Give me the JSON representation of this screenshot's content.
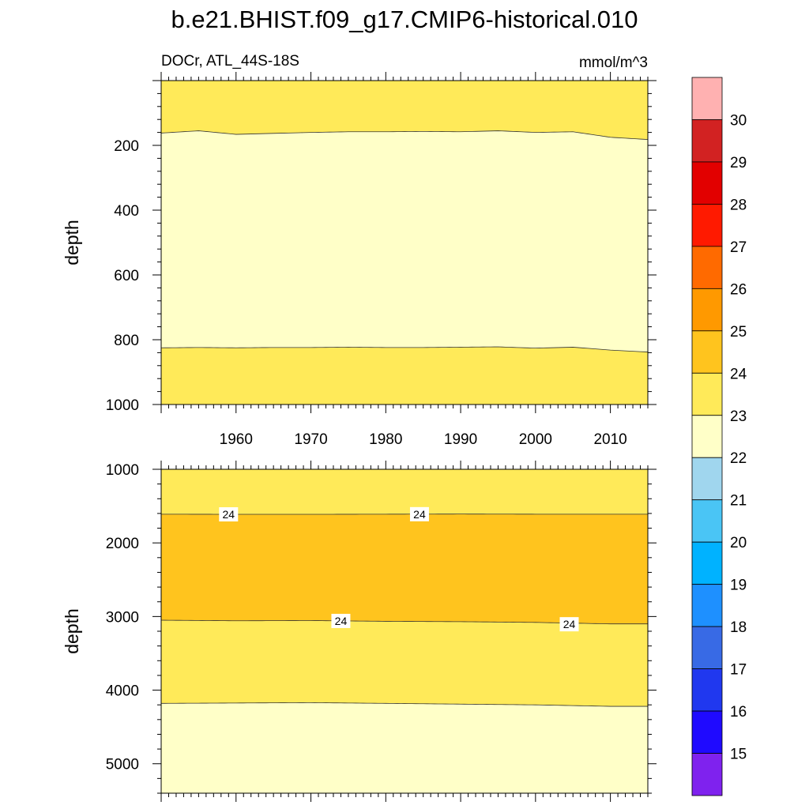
{
  "title": "b.e21.BHIST.f09_g17.CMIP6-historical.010",
  "subtitle_left": "DOCr, ATL_44S-18S",
  "subtitle_right": "mmol/m^3",
  "chart_data": [
    {
      "type": "contour",
      "name": "upper panel",
      "xlim": [
        1950,
        2015
      ],
      "ylim": [
        0,
        1000
      ],
      "ylabel": "depth",
      "xticks": [
        1960,
        1970,
        1980,
        1990,
        2000,
        2010
      ],
      "yticks": [
        200,
        400,
        600,
        800,
        1000
      ],
      "bands": [
        {
          "from_depth": 0,
          "to_depth": "line_23_upper",
          "range": "23-24",
          "color": "#ffea59"
        },
        {
          "from_depth": "line_23_upper",
          "to_depth": "line_23_lower",
          "range": "22-23",
          "color": "#ffffc8"
        },
        {
          "from_depth": "line_23_lower",
          "to_depth": 1000,
          "range": "23-24",
          "color": "#ffea59"
        }
      ],
      "contour_lines": {
        "years": [
          1950,
          1955,
          1960,
          1965,
          1970,
          1975,
          1980,
          1985,
          1990,
          1995,
          2000,
          2005,
          2010,
          2015
        ],
        "line_23_upper": [
          162,
          155,
          166,
          163,
          160,
          158,
          158,
          157,
          158,
          155,
          160,
          158,
          175,
          182
        ],
        "line_23_lower": [
          825,
          824,
          825,
          824,
          824,
          823,
          824,
          824,
          823,
          822,
          826,
          823,
          832,
          838
        ]
      }
    },
    {
      "type": "contour",
      "name": "lower panel",
      "xlim": [
        1950,
        2015
      ],
      "ylim": [
        1000,
        5400
      ],
      "ylabel": "depth",
      "yticks": [
        1000,
        2000,
        3000,
        4000,
        5000
      ],
      "bands": [
        {
          "from_depth": 1000,
          "to_depth": "line_24_upper",
          "range": "23-24",
          "color": "#ffea59"
        },
        {
          "from_depth": "line_24_upper",
          "to_depth": "line_24_lower",
          "range": "24-25",
          "color": "#ffc41e"
        },
        {
          "from_depth": "line_24_lower",
          "to_depth": "line_23_deep",
          "range": "23-24",
          "color": "#ffea59"
        },
        {
          "from_depth": "line_23_deep",
          "to_depth": 5400,
          "range": "22-23",
          "color": "#ffffc8"
        }
      ],
      "contour_lines": {
        "years": [
          1950,
          1960,
          1970,
          1980,
          1990,
          2000,
          2010,
          2015
        ],
        "line_24_upper": [
          1610,
          1612,
          1612,
          1610,
          1608,
          1610,
          1610,
          1610
        ],
        "line_24_lower": [
          3050,
          3058,
          3055,
          3065,
          3070,
          3080,
          3100,
          3100
        ],
        "line_23_deep": [
          4180,
          4175,
          4170,
          4180,
          4190,
          4200,
          4220,
          4220
        ]
      },
      "line_labels": [
        {
          "text": "24",
          "year": 1959,
          "depth": 1612
        },
        {
          "text": "24",
          "year": 1984.5,
          "depth": 1610
        },
        {
          "text": "24",
          "year": 1974,
          "depth": 3060
        },
        {
          "text": "24",
          "year": 2004.5,
          "depth": 3105
        }
      ]
    }
  ],
  "colorbar": {
    "levels": [
      15,
      16,
      17,
      18,
      19,
      20,
      21,
      22,
      23,
      24,
      25,
      26,
      27,
      28,
      29,
      30
    ],
    "colors": [
      "#7f22ee",
      "#1f0aff",
      "#2038ef",
      "#386ae5",
      "#1e90ff",
      "#00b2ff",
      "#4ac5f5",
      "#a0d6ee",
      "#ffffc8",
      "#ffea59",
      "#ffc41e",
      "#ff9900",
      "#ff6a00",
      "#ff1a00",
      "#e20000",
      "#d22222",
      "#ffb1b1"
    ]
  }
}
